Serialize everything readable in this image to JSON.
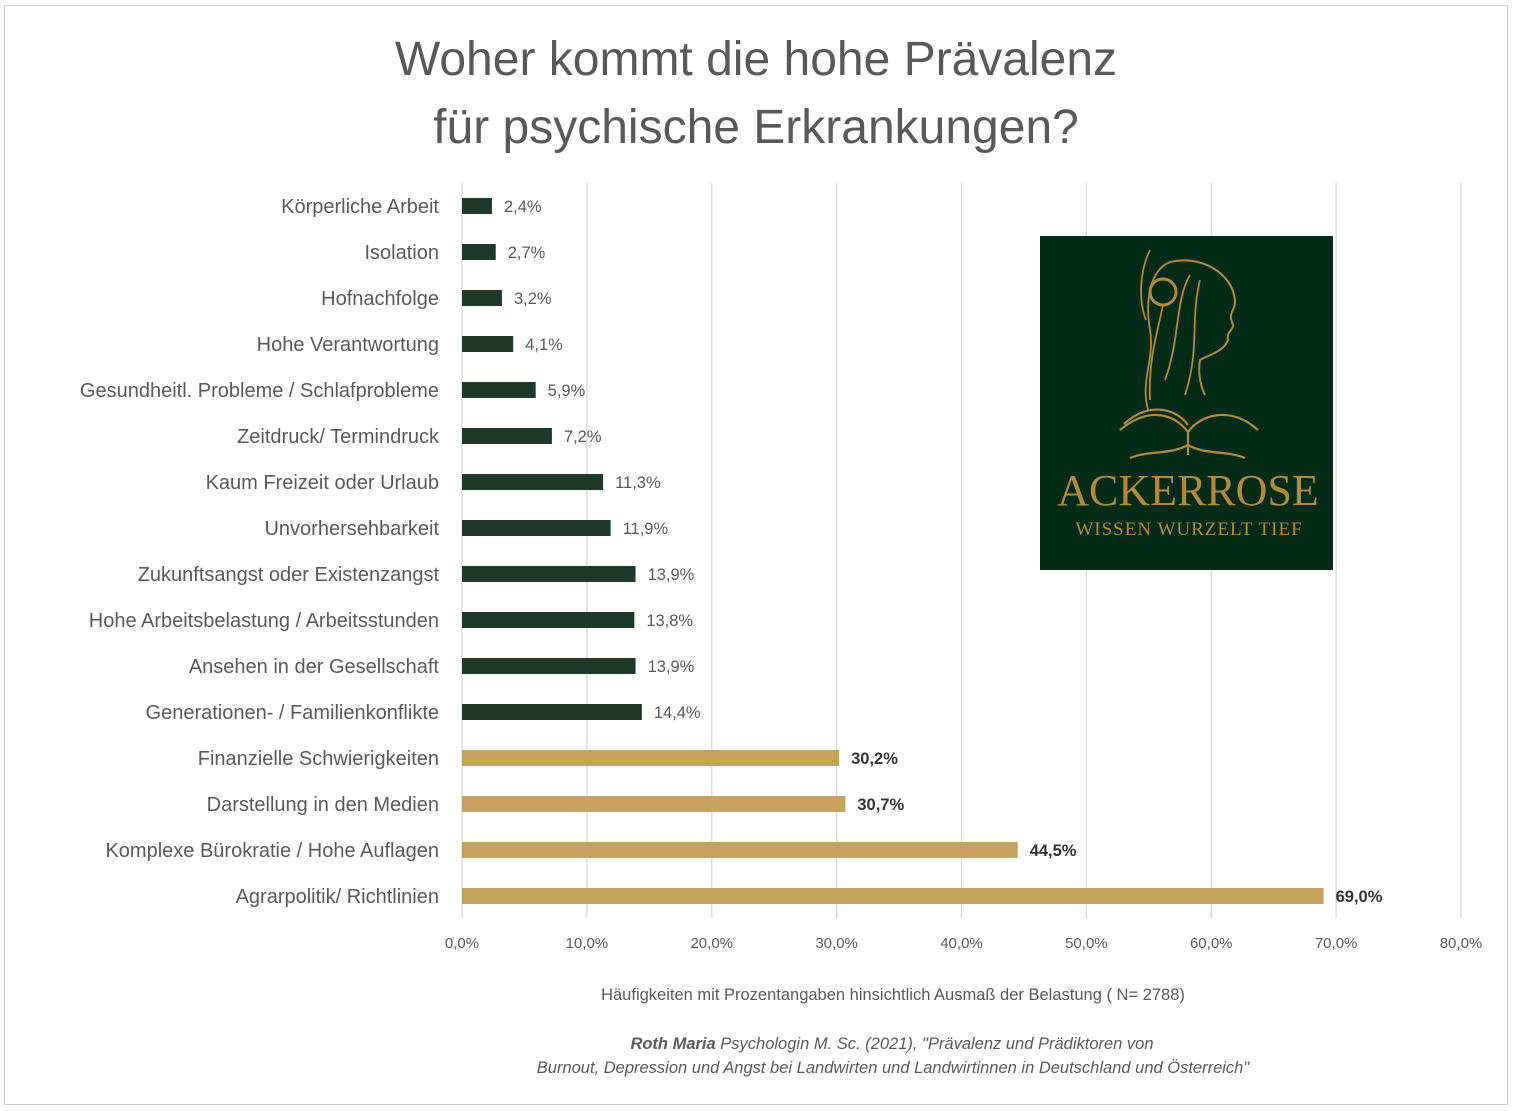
{
  "chart_data": {
    "type": "bar",
    "orientation": "horizontal",
    "title": [
      "Woher kommt die hohe Prävalenz",
      "für psychische Erkrankungen?"
    ],
    "xlabel": "Häufigkeiten mit Prozentangaben hinsichtlich Ausmaß der Belastung ( N= 2788)",
    "ylabel": "",
    "xlim": [
      0,
      80
    ],
    "xticks": [
      "0,0%",
      "10,0%",
      "20,0%",
      "30,0%",
      "40,0%",
      "50,0%",
      "60,0%",
      "70,0%",
      "80,0%"
    ],
    "grid": "vertical",
    "categories": [
      "Körperliche Arbeit",
      "Isolation",
      "Hofnachfolge",
      "Hohe Verantwortung",
      "Gesundheitl. Probleme / Schlafprobleme",
      "Zeitdruck/ Termindruck",
      "Kaum Freizeit oder Urlaub",
      "Unvorhersehbarkeit",
      "Zukunftsangst oder Existenzangst",
      "Hohe Arbeitsbelastung / Arbeitsstunden",
      "Ansehen in der Gesellschaft",
      "Generationen- / Familienkonflikte",
      "Finanzielle Schwierigkeiten",
      "Darstellung in den Medien",
      "Komplexe Bürokratie / Hohe Auflagen",
      "Agrarpolitik/ Richtlinien"
    ],
    "values": [
      2.4,
      2.7,
      3.2,
      4.1,
      5.9,
      7.2,
      11.3,
      11.9,
      13.9,
      13.8,
      13.9,
      14.4,
      30.2,
      30.7,
      44.5,
      69.0
    ],
    "data_labels": [
      "2,4%",
      "2,7%",
      "3,2%",
      "4,1%",
      "5,9%",
      "7,2%",
      "11,3%",
      "11,9%",
      "13,9%",
      "13,8%",
      "13,9%",
      "14,4%",
      "30,2%",
      "30,7%",
      "44,5%",
      "69,0%"
    ],
    "highlight": [
      false,
      false,
      false,
      false,
      false,
      false,
      false,
      false,
      false,
      false,
      false,
      false,
      true,
      true,
      true,
      true
    ],
    "colors": {
      "normal": "#203a29",
      "highlight": "#c4a35e",
      "grid": "#d9d9d9",
      "text": "#595959"
    },
    "source": {
      "author": "Roth Maria",
      "line1_rest": " Psychologin M. Sc. (2021), \"Prävalenz und Prädiktoren von",
      "line2": "Burnout, Depression und Angst bei Landwirten und Landwirtinnen in Deutschland und Österreich\""
    }
  },
  "logo": {
    "name": "ACKERROSE",
    "tagline": "WISSEN WURZELT TIEF",
    "background": "#032b17",
    "gold": "#b08a3e"
  }
}
